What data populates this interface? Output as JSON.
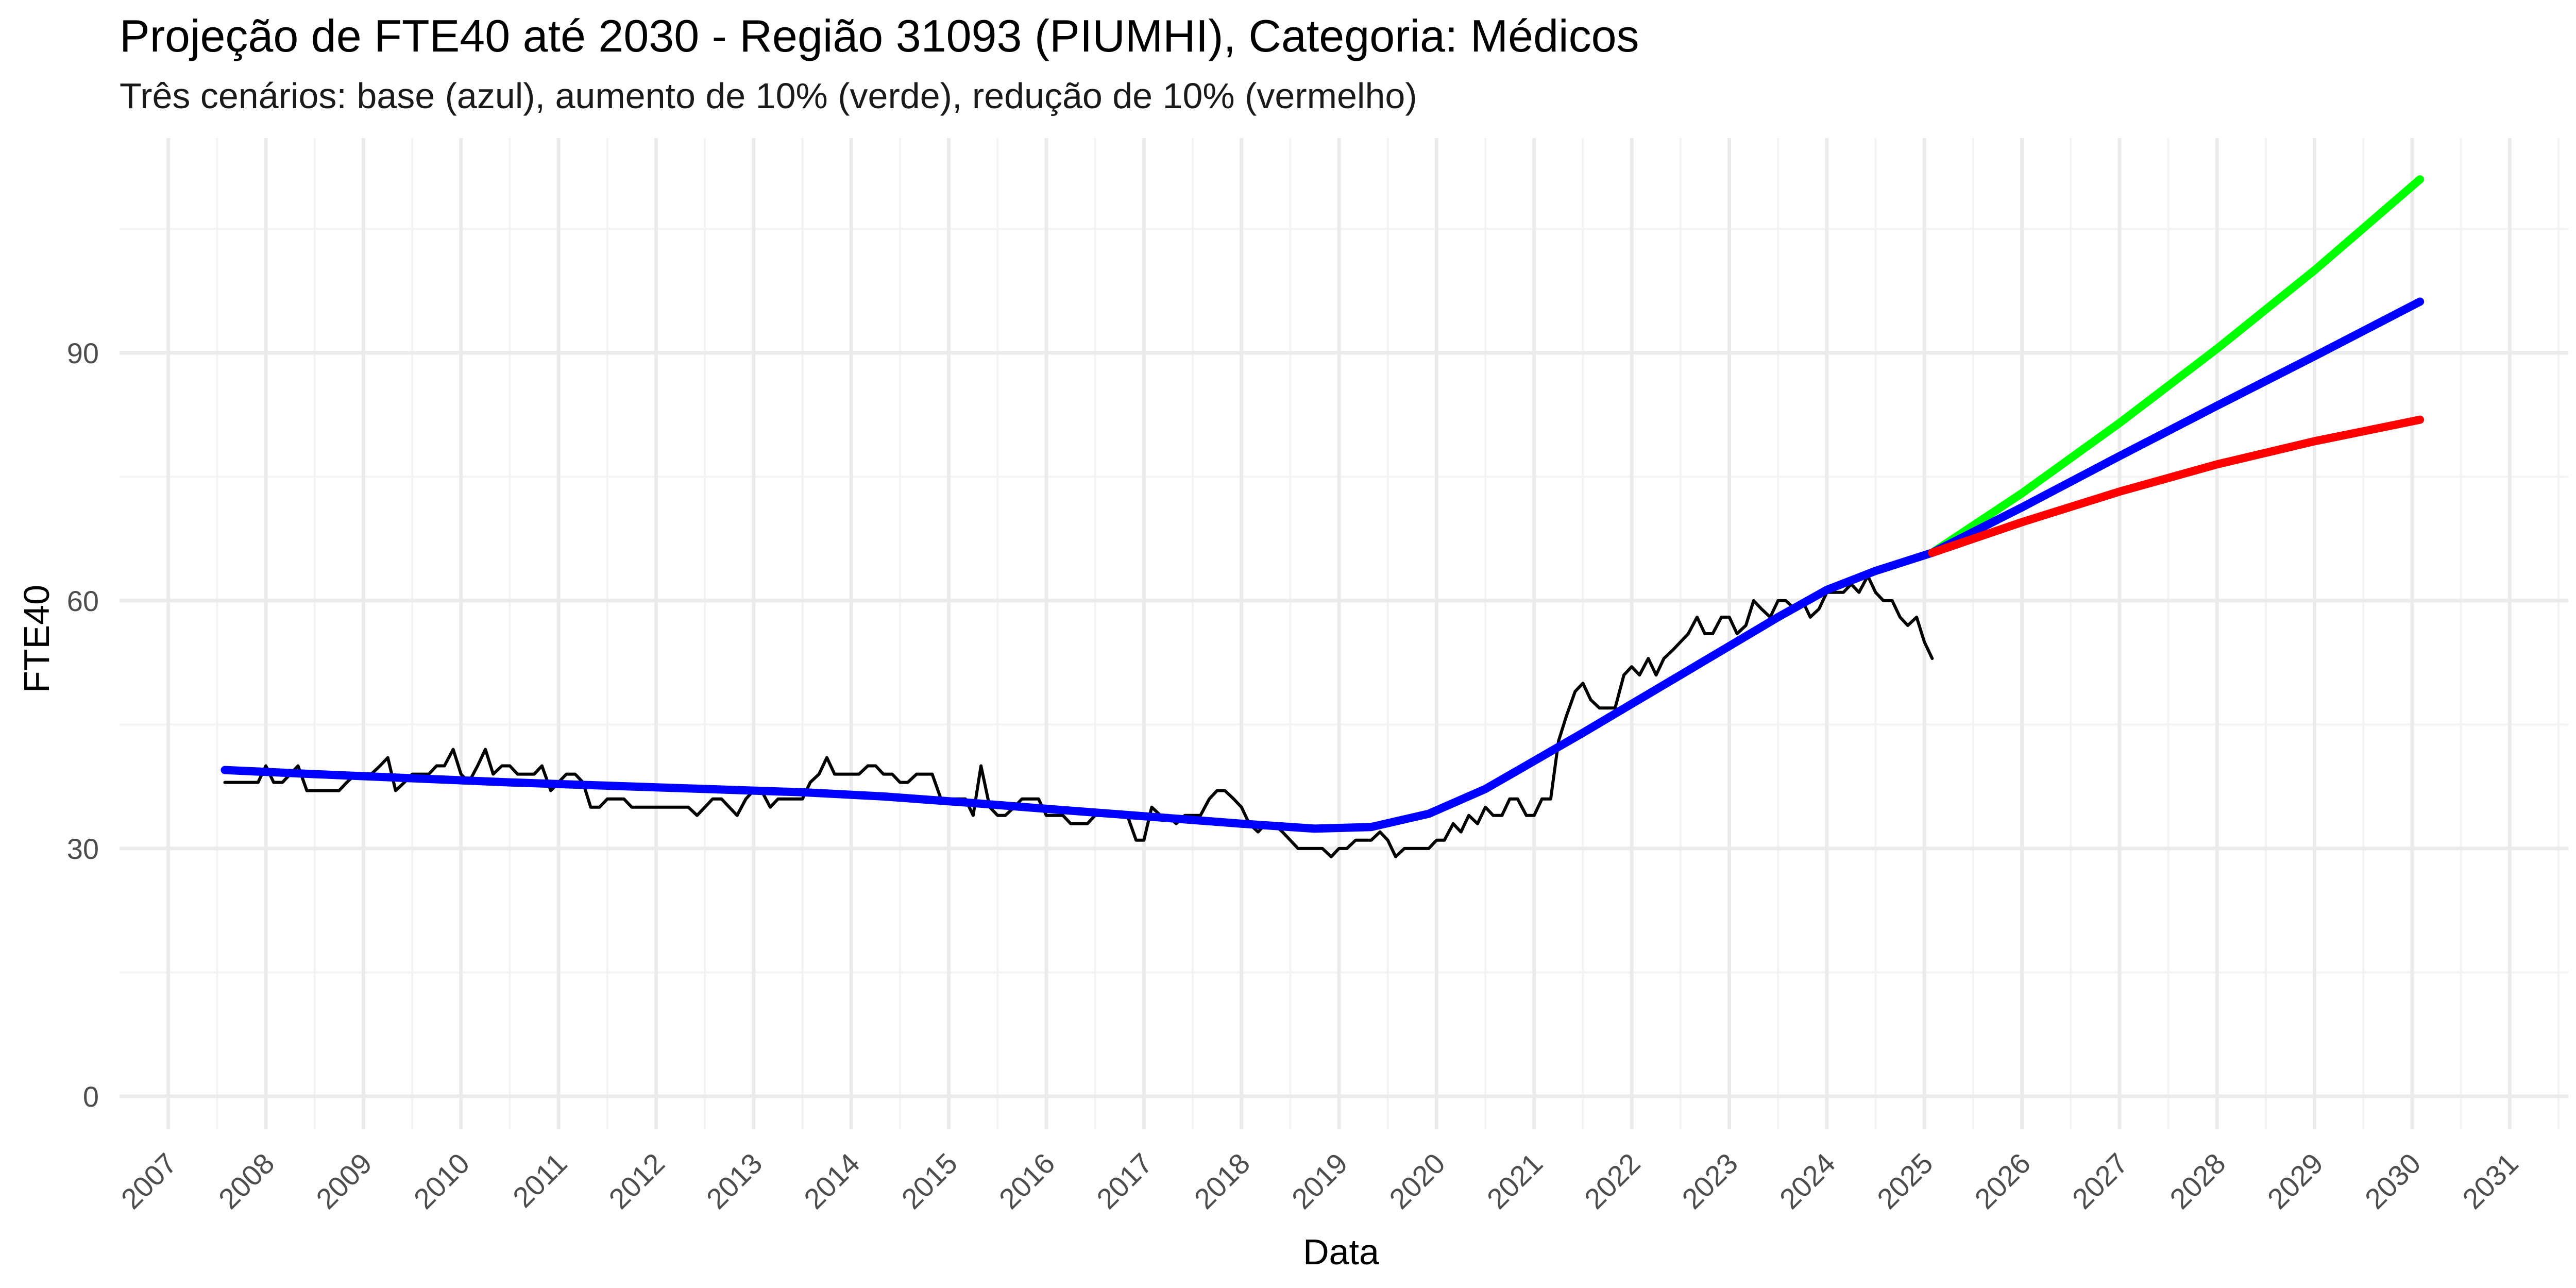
{
  "chart_data": {
    "type": "line",
    "title": "Projeção de FTE40 até 2030 - Região 31093 (PIUMHI), Categoria: Médicos",
    "subtitle": "Três cenários: base (azul), aumento de 10% (verde), redução de 10% (vermelho)",
    "xlabel": "Data",
    "ylabel": "FTE40",
    "x_type": "year",
    "xlim": [
      2006.5,
      2031.6
    ],
    "ylim": [
      -4,
      116
    ],
    "x_ticks": [
      2007,
      2008,
      2009,
      2010,
      2011,
      2012,
      2013,
      2014,
      2015,
      2016,
      2017,
      2018,
      2019,
      2020,
      2021,
      2022,
      2023,
      2024,
      2025,
      2026,
      2027,
      2028,
      2029,
      2030,
      2031
    ],
    "x_tick_labels": [
      "2007",
      "2008",
      "2009",
      "2010",
      "2011",
      "2012",
      "2013",
      "2014",
      "2015",
      "2016",
      "2017",
      "2018",
      "2019",
      "2020",
      "2021",
      "2022",
      "2023",
      "2024",
      "2025",
      "2026",
      "2027",
      "2028",
      "2029",
      "2030",
      "2031"
    ],
    "y_ticks": [
      0,
      30,
      60,
      90
    ],
    "y_tick_labels": [
      "0",
      "30",
      "60",
      "90"
    ],
    "grid": true,
    "legend": "none",
    "series": [
      {
        "color": "#000000",
        "role": "observed",
        "x": [
          2007.58,
          2007.67,
          2007.75,
          2007.83,
          2007.92,
          2008.0,
          2008.08,
          2008.17,
          2008.25,
          2008.33,
          2008.42,
          2008.5,
          2008.58,
          2008.67,
          2008.75,
          2008.83,
          2008.92,
          2009.0,
          2009.08,
          2009.17,
          2009.25,
          2009.33,
          2009.42,
          2009.5,
          2009.58,
          2009.67,
          2009.75,
          2009.83,
          2009.92,
          2010.0,
          2010.08,
          2010.17,
          2010.25,
          2010.33,
          2010.42,
          2010.5,
          2010.58,
          2010.67,
          2010.75,
          2010.83,
          2010.92,
          2011.0,
          2011.08,
          2011.17,
          2011.25,
          2011.33,
          2011.42,
          2011.5,
          2011.58,
          2011.67,
          2011.75,
          2011.83,
          2011.92,
          2012.0,
          2012.08,
          2012.17,
          2012.25,
          2012.33,
          2012.42,
          2012.5,
          2012.58,
          2012.67,
          2012.75,
          2012.83,
          2012.92,
          2013.0,
          2013.08,
          2013.17,
          2013.25,
          2013.33,
          2013.42,
          2013.5,
          2013.58,
          2013.67,
          2013.75,
          2013.83,
          2013.92,
          2014.0,
          2014.08,
          2014.17,
          2014.25,
          2014.33,
          2014.42,
          2014.5,
          2014.58,
          2014.67,
          2014.75,
          2014.83,
          2014.92,
          2015.0,
          2015.08,
          2015.17,
          2015.25,
          2015.33,
          2015.42,
          2015.5,
          2015.58,
          2015.67,
          2015.75,
          2015.83,
          2015.92,
          2016.0,
          2016.08,
          2016.17,
          2016.25,
          2016.33,
          2016.42,
          2016.5,
          2016.58,
          2016.67,
          2016.75,
          2016.83,
          2016.92,
          2017.0,
          2017.08,
          2017.17,
          2017.25,
          2017.33,
          2017.42,
          2017.5,
          2017.58,
          2017.67,
          2017.75,
          2017.83,
          2017.92,
          2018.0,
          2018.08,
          2018.17,
          2018.25,
          2018.33,
          2018.42,
          2018.5,
          2018.58,
          2018.67,
          2018.75,
          2018.83,
          2018.92,
          2019.0,
          2019.08,
          2019.17,
          2019.25,
          2019.33,
          2019.42,
          2019.5,
          2019.58,
          2019.67,
          2019.75,
          2019.83,
          2019.92,
          2020.0,
          2020.08,
          2020.17,
          2020.25,
          2020.33,
          2020.42,
          2020.5,
          2020.58,
          2020.67,
          2020.75,
          2020.83,
          2020.92,
          2021.0,
          2021.08,
          2021.17,
          2021.25,
          2021.33,
          2021.42,
          2021.5,
          2021.58,
          2021.67,
          2021.75,
          2021.83,
          2021.92,
          2022.0,
          2022.08,
          2022.17,
          2022.25,
          2022.33,
          2022.42,
          2022.5,
          2022.58,
          2022.67,
          2022.75,
          2022.83,
          2022.92,
          2023.0,
          2023.08,
          2023.17,
          2023.25,
          2023.33,
          2023.42,
          2023.5,
          2023.58,
          2023.67,
          2023.75,
          2023.83,
          2023.92,
          2024.0,
          2024.08,
          2024.17,
          2024.25,
          2024.33,
          2024.42,
          2024.5,
          2024.58,
          2024.67,
          2024.75,
          2024.83,
          2024.92,
          2025.0,
          2025.08
        ],
        "values": [
          38,
          38,
          38,
          38,
          38,
          40,
          38,
          38,
          39,
          40,
          37,
          37,
          37,
          37,
          37,
          38,
          39,
          39,
          39,
          40,
          41,
          37,
          38,
          39,
          39,
          39,
          40,
          40,
          42,
          39,
          38,
          40,
          42,
          39,
          40,
          40,
          39,
          39,
          39,
          40,
          37,
          38,
          39,
          39,
          38,
          35,
          35,
          36,
          36,
          36,
          35,
          35,
          35,
          35,
          35,
          35,
          35,
          35,
          34,
          35,
          36,
          36,
          35,
          34,
          36,
          37,
          37,
          35,
          36,
          36,
          36,
          36,
          38,
          39,
          41,
          39,
          39,
          39,
          39,
          40,
          40,
          39,
          39,
          38,
          38,
          39,
          39,
          39,
          36,
          36,
          36,
          36,
          34,
          40,
          35,
          34,
          34,
          35,
          36,
          36,
          36,
          34,
          34,
          34,
          33,
          33,
          33,
          34,
          34,
          34,
          34,
          34,
          31,
          31,
          35,
          34,
          34,
          33,
          34,
          34,
          34,
          36,
          37,
          37,
          36,
          35,
          33,
          32,
          33,
          33,
          32,
          31,
          30,
          30,
          30,
          30,
          29,
          30,
          30,
          31,
          31,
          31,
          32,
          31,
          29,
          30,
          30,
          30,
          30,
          31,
          31,
          33,
          32,
          34,
          33,
          35,
          34,
          34,
          36,
          36,
          34,
          34,
          36,
          36,
          43,
          46,
          49,
          50,
          48,
          47,
          47,
          47,
          51,
          52,
          51,
          53,
          51,
          53,
          54,
          55,
          56,
          58,
          56,
          56,
          58,
          58,
          56,
          57,
          60,
          59,
          58,
          60,
          60,
          59,
          60,
          58,
          59,
          61,
          61,
          61,
          62,
          61,
          63,
          61,
          60,
          60,
          58,
          57,
          58,
          55,
          53
        ]
      },
      {
        "color": "#0000ff",
        "role": "base",
        "x": [
          2007.58,
          2008.5,
          2009.5,
          2010.5,
          2011.5,
          2012.5,
          2013.5,
          2014.33,
          2015.25,
          2016.0,
          2017.0,
          2018.0,
          2018.75,
          2019.33,
          2019.92,
          2020.5,
          2021.0,
          2021.5,
          2022.0,
          2022.5,
          2023.0,
          2023.5,
          2024.0,
          2024.5,
          2025.08
        ],
        "values": [
          39.5,
          39.0,
          38.5,
          38.0,
          37.6,
          37.2,
          36.8,
          36.3,
          35.5,
          34.8,
          33.9,
          33.0,
          32.4,
          32.6,
          34.2,
          37.2,
          40.6,
          44.0,
          47.5,
          51.0,
          54.5,
          58.0,
          61.3,
          63.6,
          65.8
        ]
      },
      {
        "color": "#00ff00",
        "role": "increase_10pct",
        "x": [
          2025.08,
          2026.0,
          2027.0,
          2028.0,
          2029.0,
          2030.08
        ],
        "values": [
          65.8,
          73.0,
          81.5,
          90.5,
          100.0,
          111.0
        ]
      },
      {
        "color": "#0000ff",
        "role": "base_projection",
        "x": [
          2025.08,
          2026.0,
          2027.0,
          2028.0,
          2029.0,
          2030.08
        ],
        "values": [
          65.8,
          71.3,
          77.5,
          83.6,
          89.6,
          96.2
        ]
      },
      {
        "color": "#ff0000",
        "role": "decrease_10pct",
        "x": [
          2025.08,
          2026.0,
          2027.0,
          2028.0,
          2029.0,
          2030.08
        ],
        "values": [
          65.8,
          69.5,
          73.2,
          76.5,
          79.3,
          81.9
        ]
      }
    ]
  }
}
